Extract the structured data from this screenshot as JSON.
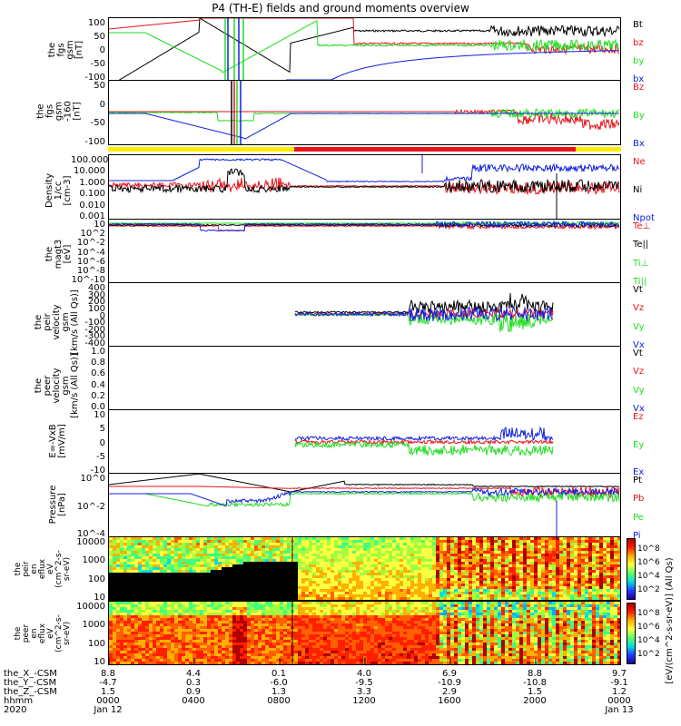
{
  "title": "P4 (TH-E) fields and ground moments overview",
  "colors": {
    "black": "#000000",
    "red": "#e8141c",
    "green": "#22dd22",
    "blue": "#1020e0",
    "yellow": "#ffee00"
  },
  "chart_data": [
    {
      "type": "line",
      "id": "fgs",
      "ylabel": "the\nfgs\ngsm\n[nT]",
      "ylim": [
        -100,
        100
      ],
      "yticks": [
        "100",
        "50",
        "0",
        "-50",
        "-100"
      ],
      "series": [
        {
          "name": "Bt",
          "color": "black"
        },
        {
          "name": "bz",
          "color": "red"
        },
        {
          "name": "by",
          "color": "green"
        },
        {
          "name": "bx",
          "color": "blue"
        }
      ]
    },
    {
      "type": "line",
      "id": "fgs2",
      "ylabel": "the\nfgs\ngsm\n-160\n[nT]",
      "ylim": [
        -120,
        50
      ],
      "yticks": [
        "50",
        "0",
        "-50",
        "-100"
      ],
      "series": [
        {
          "name": "Bz",
          "color": "red"
        },
        {
          "name": "By",
          "color": "green"
        },
        {
          "name": "Bx",
          "color": "blue"
        }
      ]
    },
    {
      "type": "line",
      "id": "density",
      "ylabel": "Density\n1/cc\n[cm-3]",
      "yscale": "log",
      "yticks": [
        "100.000",
        "10.000",
        "1.000",
        "0.100",
        "0.010",
        "0.001"
      ],
      "series": [
        {
          "name": "Ne",
          "color": "red"
        },
        {
          "name": "Ni",
          "color": "black"
        },
        {
          "name": "Npot",
          "color": "blue"
        }
      ]
    },
    {
      "type": "line",
      "id": "temp",
      "ylabel": "the\nmagt3\n[eV]",
      "yscale": "log",
      "yticks": [
        "10",
        "10^2",
        "10^-2",
        "10^-4",
        "10^-6",
        "10^-8",
        "10^-10"
      ],
      "series": [
        {
          "name": "Te⊥",
          "color": "red"
        },
        {
          "name": "Te||",
          "color": "black"
        },
        {
          "name": "Ti⊥",
          "color": "green"
        },
        {
          "name": "Ti||",
          "color": "green"
        }
      ]
    },
    {
      "type": "line",
      "id": "peir",
      "ylabel": "the\npeir\nvelocity\ngsm\n[km/s (All Qs)]",
      "ylim": [
        -400,
        400
      ],
      "yticks": [
        "400",
        "300",
        "200",
        "100",
        "0",
        "-100",
        "-200",
        "-300",
        "-400"
      ],
      "series": [
        {
          "name": "Vt",
          "color": "black"
        },
        {
          "name": "Vz",
          "color": "red"
        },
        {
          "name": "Vy",
          "color": "green"
        },
        {
          "name": "Vx",
          "color": "blue"
        }
      ]
    },
    {
      "type": "line",
      "id": "peer",
      "ylabel": "the\npeer\nvelocity\ngsm\n[km/s (All Qs)]",
      "ylim": [
        0,
        1
      ],
      "yticks": [
        "1.0",
        "0.8",
        "0.6",
        "0.4",
        "0.2",
        "0.0"
      ],
      "series": [
        {
          "name": "Vt",
          "color": "black"
        },
        {
          "name": "Vz",
          "color": "red"
        },
        {
          "name": "Vy",
          "color": "green"
        },
        {
          "name": "Vx",
          "color": "blue"
        }
      ]
    },
    {
      "type": "line",
      "id": "efield",
      "ylabel": "E=-VxB\n[mV/m]",
      "ylim": [
        -15,
        15
      ],
      "yticks": [
        "10",
        "5",
        "0",
        "-5",
        "-10"
      ],
      "series": [
        {
          "name": "Ez",
          "color": "red"
        },
        {
          "name": "Ey",
          "color": "green"
        },
        {
          "name": "Ex",
          "color": "blue"
        }
      ]
    },
    {
      "type": "line",
      "id": "pressure",
      "ylabel": "Pressure\n[nPa]",
      "yscale": "log",
      "yticks": [
        "10^0",
        "10^-2",
        "10^-4"
      ],
      "series": [
        {
          "name": "Pt",
          "color": "black"
        },
        {
          "name": "Pb",
          "color": "red"
        },
        {
          "name": "Pe",
          "color": "green"
        },
        {
          "name": "Pi",
          "color": "blue"
        }
      ]
    },
    {
      "type": "heatmap",
      "id": "peir_spec",
      "ylabel": "the\npeir\nen\neflux\neV\n(cm^2-s-\nsr-eV)",
      "yticks": [
        "10000",
        "1000",
        "100",
        "10"
      ]
    },
    {
      "type": "heatmap",
      "id": "peer_spec",
      "ylabel": "the\npeer\nen\neflux\neV\n(cm^2-s-\nsr-eV)",
      "yticks": [
        "10000",
        "1000",
        "100",
        "10"
      ]
    }
  ],
  "colorbar": {
    "label": "[eV/(cm^2-s-sr-eV)] (All Qs)",
    "ticks1": [
      "10^8",
      "10^6",
      "10^4",
      "10^2"
    ],
    "ticks2": [
      "10^8",
      "10^6",
      "10^4",
      "10^2"
    ]
  },
  "xaxis": {
    "rows": [
      {
        "label": "the_X_-CSM",
        "values": [
          "8.8",
          "4.4",
          "0.1",
          "4.0",
          "6.9",
          "8.8",
          "9.7"
        ]
      },
      {
        "label": "the_Y_-CSM",
        "values": [
          "-4.7",
          "0.3",
          "-6.0",
          "-9.5",
          "-10.9",
          "-10.8",
          "-9.1"
        ]
      },
      {
        "label": "the_Z_-CSM",
        "values": [
          "1.5",
          "0.9",
          "1.3",
          "3.3",
          "2.9",
          "1.5",
          "1.2"
        ]
      },
      {
        "label": "hhmm",
        "values": [
          "0000",
          "0400",
          "0800",
          "1200",
          "1600",
          "2000",
          "0000"
        ]
      },
      {
        "label": "2020",
        "values": [
          "Jan 12",
          "",
          "",
          "",
          "",
          "",
          "Jan 13"
        ]
      }
    ]
  }
}
